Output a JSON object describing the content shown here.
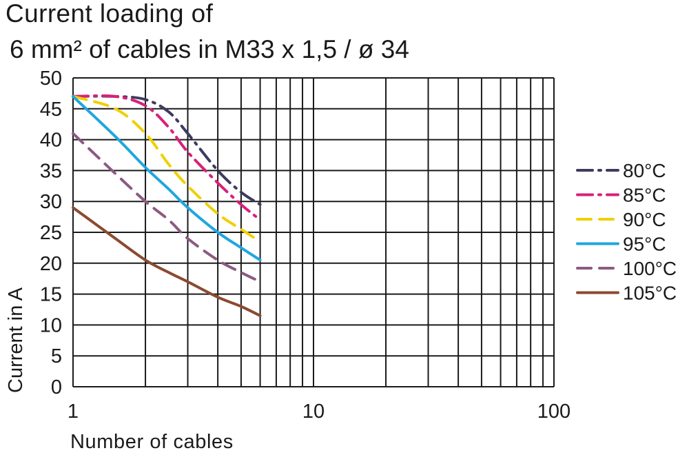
{
  "chart_data": {
    "type": "line",
    "title": "Current loading of",
    "subtitle": "6 mm² of cables in M33 x 1,5 / ø 34",
    "xlabel": "Number of cables",
    "ylabel": "Current in A",
    "x_scale": "log",
    "xlim": [
      1,
      100
    ],
    "ylim": [
      0,
      50
    ],
    "x_tick_labels": [
      "1",
      "10",
      "100"
    ],
    "y_tick_labels": [
      "0",
      "5",
      "10",
      "15",
      "20",
      "25",
      "30",
      "35",
      "40",
      "45",
      "50"
    ],
    "grid": true,
    "legend_position": "right",
    "series": [
      {
        "name": "80°C",
        "color": "#3d3b5e",
        "style": "dash-dot",
        "x": [
          1,
          1.5,
          2,
          2.5,
          3,
          4,
          5,
          6
        ],
        "y": [
          47,
          47,
          46.5,
          44.5,
          41,
          35,
          31.5,
          29.5
        ]
      },
      {
        "name": "85°C",
        "color": "#d8207a",
        "style": "dash-dot",
        "x": [
          1,
          1.5,
          2,
          2.5,
          3,
          4,
          5,
          6
        ],
        "y": [
          47,
          47,
          45.5,
          42,
          38,
          33,
          29.5,
          27
        ]
      },
      {
        "name": "90°C",
        "color": "#f0d000",
        "style": "dash",
        "x": [
          1,
          1.5,
          2,
          2.5,
          3,
          4,
          5,
          6
        ],
        "y": [
          47,
          45,
          41,
          36,
          32.5,
          28,
          25.5,
          23.5
        ]
      },
      {
        "name": "95°C",
        "color": "#1fa6e0",
        "style": "solid",
        "x": [
          1,
          1.5,
          2,
          2.5,
          3,
          4,
          5,
          6
        ],
        "y": [
          47,
          40.5,
          35.5,
          32,
          29,
          25,
          22.5,
          20.5
        ]
      },
      {
        "name": "100°C",
        "color": "#8c5a82",
        "style": "dash",
        "x": [
          1,
          1.5,
          2,
          2.5,
          3,
          4,
          5,
          6
        ],
        "y": [
          41,
          34.5,
          30,
          27,
          24,
          20.5,
          18.5,
          17
        ]
      },
      {
        "name": "105°C",
        "color": "#8b4a30",
        "style": "solid",
        "x": [
          1,
          1.5,
          2,
          2.5,
          3,
          4,
          5,
          6
        ],
        "y": [
          29,
          24,
          20.5,
          18.5,
          17,
          14.5,
          13,
          11.5
        ]
      }
    ]
  }
}
